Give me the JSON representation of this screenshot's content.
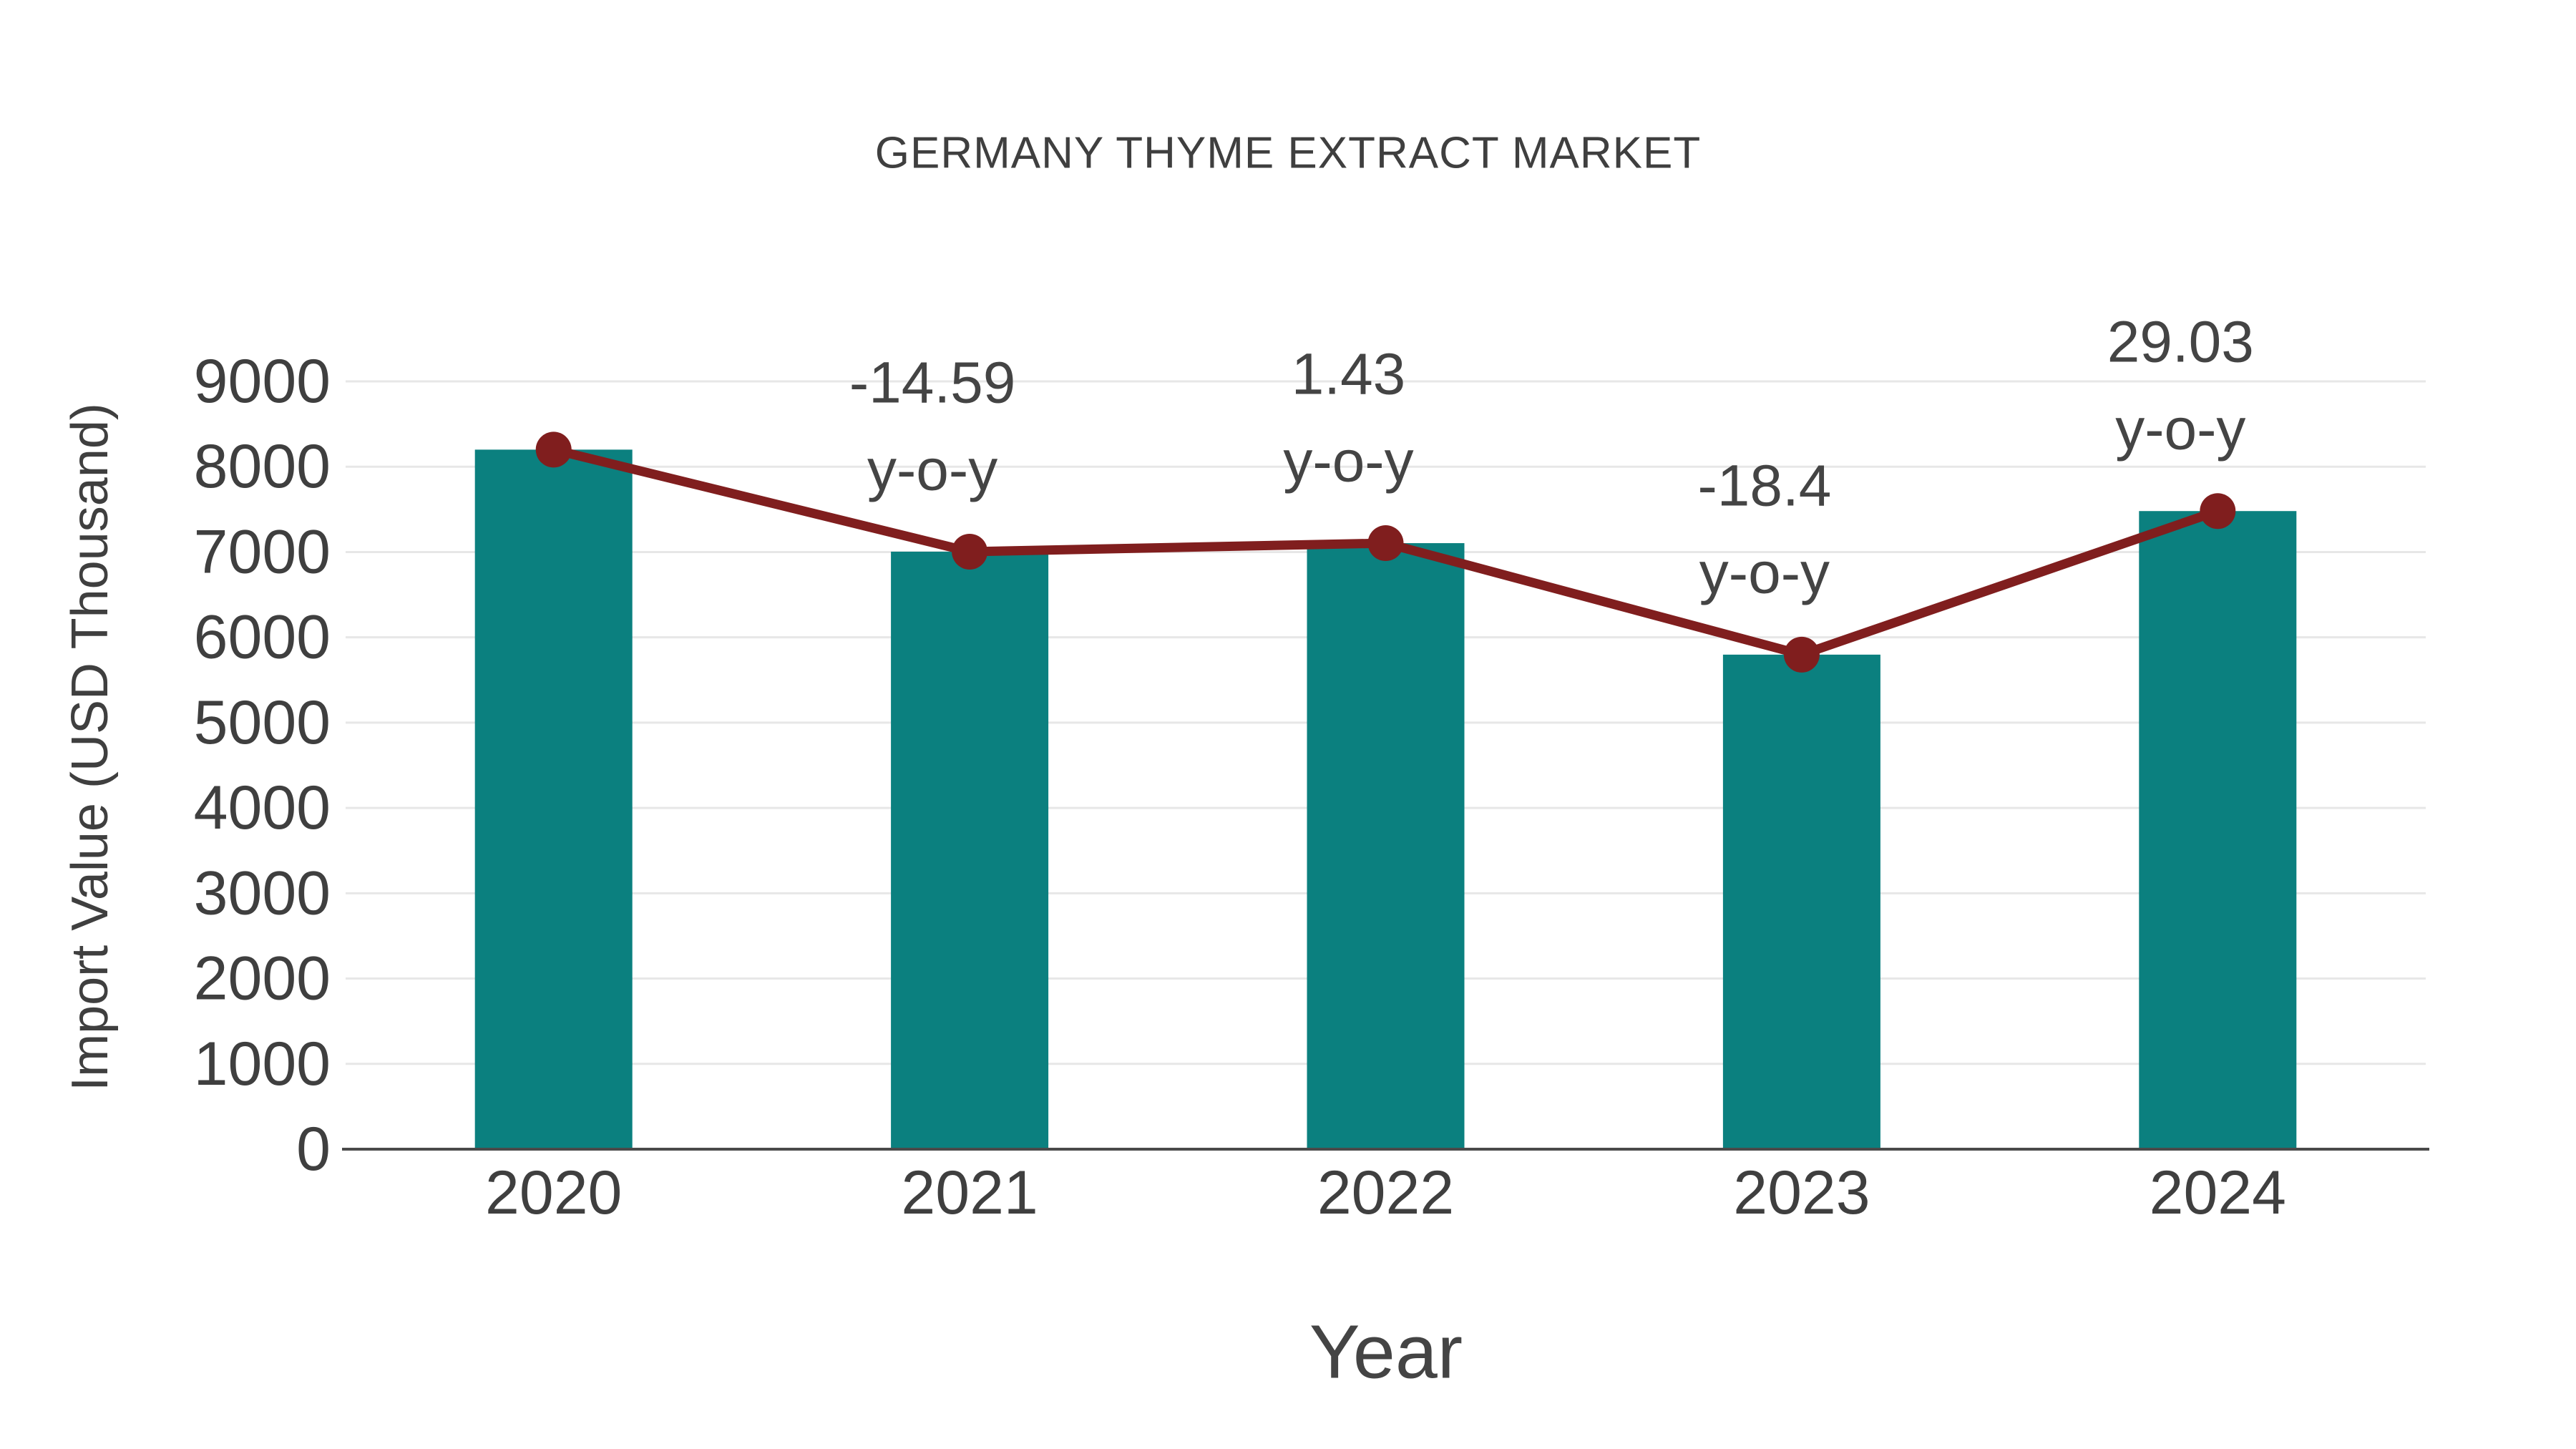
{
  "title": "GERMANY THYME EXTRACT MARKET",
  "chart_data": {
    "type": "bar",
    "subtype": "bar-with-line-overlay",
    "title": "GERMANY THYME EXTRACT MARKET",
    "xlabel": "Year",
    "ylabel": "Import Value (USD Thousand)",
    "categories": [
      "2020",
      "2021",
      "2022",
      "2023",
      "2024"
    ],
    "series": [
      {
        "name": "Import Value (USD Thousand)",
        "type": "bar",
        "values": [
          8200,
          7004,
          7104,
          5797,
          7480
        ]
      },
      {
        "name": "Trend line",
        "type": "line",
        "values": [
          8200,
          7004,
          7104,
          5797,
          7480
        ]
      }
    ],
    "annotations": [
      {
        "category": "2021",
        "line1": "-14.59",
        "line2": "y-o-y"
      },
      {
        "category": "2022",
        "line1": "1.43",
        "line2": "y-o-y"
      },
      {
        "category": "2023",
        "line1": "-18.4",
        "line2": "y-o-y"
      },
      {
        "category": "2024",
        "line1": "29.03",
        "line2": "y-o-y"
      }
    ],
    "yticks": [
      0,
      1000,
      2000,
      3000,
      4000,
      5000,
      6000,
      7000,
      8000,
      9000
    ],
    "ylim": [
      0,
      9000
    ],
    "grid": true,
    "legend": false,
    "colors": {
      "bar": "#0b807f",
      "line": "#801e1e",
      "marker": "#801e1e",
      "gridline": "#e7e7e7",
      "axis_line": "#4a4a4a",
      "text": "#3f3f3f"
    }
  }
}
